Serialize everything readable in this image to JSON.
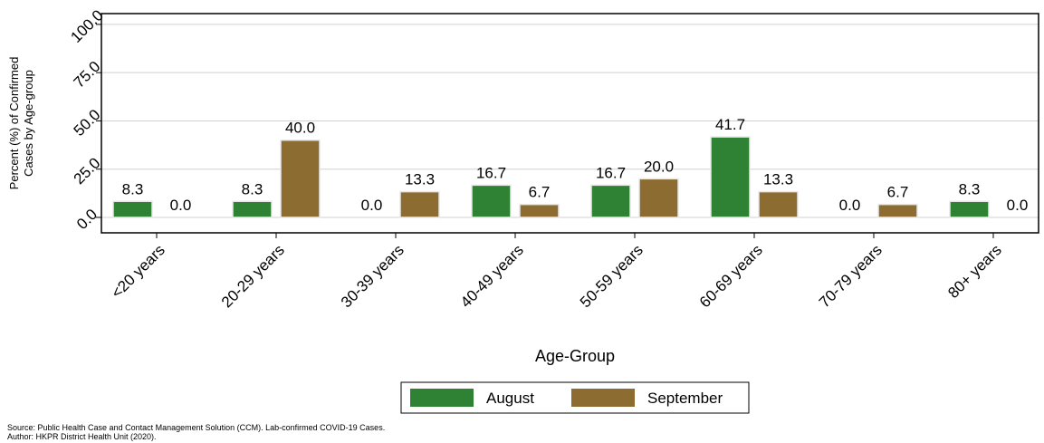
{
  "chart_data": {
    "type": "bar",
    "categories": [
      "<20 years",
      "20-29 years",
      "30-39 years",
      "40-49 years",
      "50-59 years",
      "60-69 years",
      "70-79 years",
      "80+ years"
    ],
    "series": [
      {
        "name": "August",
        "color": "#2f8233",
        "values": [
          8.3,
          8.3,
          0,
          16.7,
          16.7,
          41.7,
          0,
          8.3
        ],
        "value_labels": [
          "8.3",
          "8.3",
          "0.0",
          "16.7",
          "16.7",
          "41.7",
          "0.0",
          "8.3"
        ]
      },
      {
        "name": "September",
        "color": "#8c6c30",
        "values": [
          0,
          40,
          13.3,
          6.7,
          20,
          13.3,
          6.7,
          0
        ],
        "value_labels": [
          "0.0",
          "40.0",
          "13.3",
          "6.7",
          "20.0",
          "13.3",
          "6.7",
          "0.0"
        ]
      }
    ],
    "xlabel": "Age-Group",
    "ylabel": [
      "Percent (%) of Confirmed",
      "Cases by Age-group"
    ],
    "ylim": [
      -8,
      105.6
    ],
    "yticks": [
      {
        "value": 0,
        "label": "0.0"
      },
      {
        "value": 25,
        "label": "25.0"
      },
      {
        "value": 50,
        "label": "50.0"
      },
      {
        "value": 75,
        "label": "75.0"
      },
      {
        "value": 100,
        "label": "100.0"
      }
    ],
    "grid": true,
    "legend": "bottom",
    "source": [
      "Source: Public Health Case and Contact Management Solution (CCM). Lab-confirmed COVID-19 Cases.",
      "Author: HKPR District Health Unit (2020)."
    ]
  }
}
